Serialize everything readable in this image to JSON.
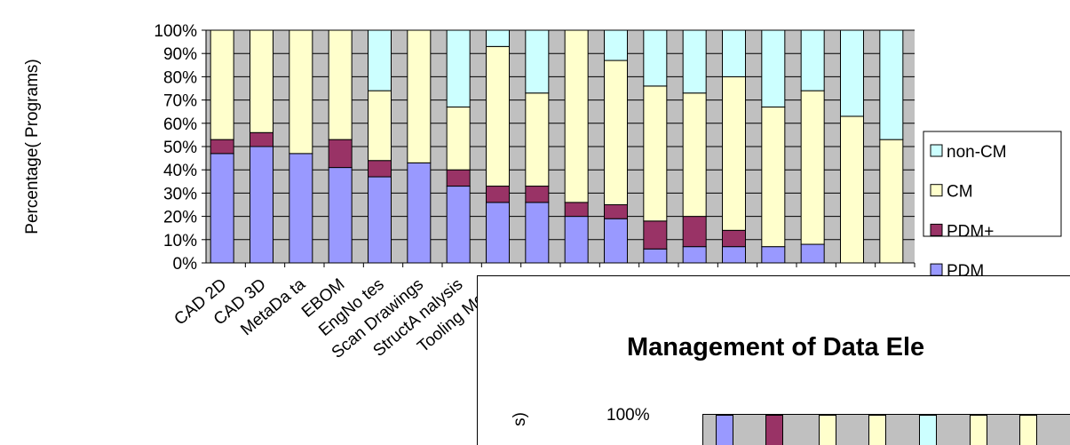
{
  "chart_data": {
    "type": "bar",
    "stacked": true,
    "percent": true,
    "title": "",
    "xlabel": "",
    "ylabel": "Percentage( Programs)",
    "ylim": [
      0,
      100
    ],
    "yticks": [
      "0%",
      "10%",
      "20%",
      "30%",
      "40%",
      "50%",
      "60%",
      "70%",
      "80%",
      "90%",
      "100%"
    ],
    "grid": true,
    "legend_position": "right",
    "categories": [
      "CAD 2D",
      "CAD 3D",
      "MetaDa ta",
      "EBOM",
      "EngNo tes",
      "Scan Drawings",
      "StructA nalysis",
      "Tooling Model",
      "",
      "",
      "",
      "",
      "",
      "",
      "",
      "",
      "",
      ""
    ],
    "series": [
      {
        "name": "PDM",
        "color": "#9999ff",
        "values": [
          47,
          50,
          47,
          41,
          37,
          43,
          33,
          26,
          26,
          20,
          19,
          6,
          7,
          7,
          7,
          8,
          0,
          0
        ]
      },
      {
        "name": "PDM+",
        "color": "#993366",
        "values": [
          6,
          6,
          0,
          12,
          7,
          0,
          7,
          7,
          7,
          6,
          6,
          12,
          13,
          7,
          0,
          0,
          0,
          0
        ]
      },
      {
        "name": "CM",
        "color": "#ffffcc",
        "values": [
          47,
          44,
          53,
          47,
          30,
          57,
          27,
          60,
          40,
          74,
          62,
          58,
          53,
          66,
          60,
          66,
          63,
          53
        ]
      },
      {
        "name": "non-CM",
        "color": "#ccffff",
        "values": [
          0,
          0,
          0,
          0,
          26,
          0,
          33,
          7,
          27,
          0,
          13,
          24,
          27,
          20,
          33,
          26,
          37,
          47
        ]
      }
    ]
  },
  "overlay": {
    "title": "Management of Data Ele",
    "ylabel_fragment": "s)",
    "tick": "100%",
    "bar_colors": [
      "#9999ff",
      "#993366",
      "#ffffcc",
      "#ffffcc",
      "#ccffff",
      "#ffffcc",
      "#ffffcc"
    ]
  }
}
